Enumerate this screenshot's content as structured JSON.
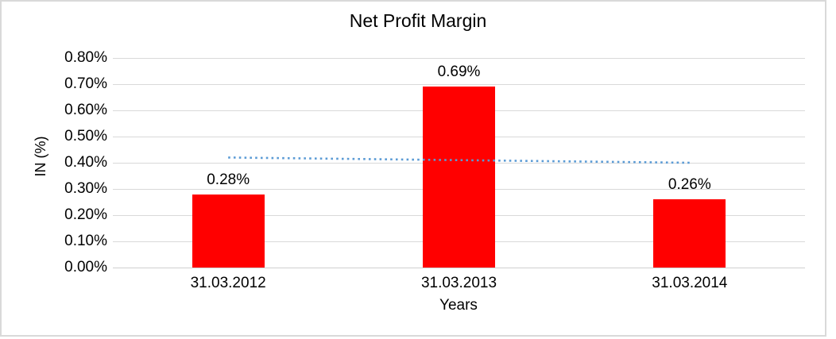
{
  "chart_data": {
    "type": "bar",
    "title": "Net Profit Margin",
    "xlabel": "Years",
    "ylabel": "IN (%)",
    "categories": [
      "31.03.2012",
      "31.03.2013",
      "31.03.2014"
    ],
    "values": [
      0.28,
      0.69,
      0.26
    ],
    "data_labels": [
      "0.28%",
      "0.69%",
      "0.26%"
    ],
    "yticks": [
      {
        "value": 0.8,
        "label": "0.80%"
      },
      {
        "value": 0.7,
        "label": "0.70%"
      },
      {
        "value": 0.6,
        "label": "0.60%"
      },
      {
        "value": 0.5,
        "label": "0.50%"
      },
      {
        "value": 0.4,
        "label": "0.40%"
      },
      {
        "value": 0.3,
        "label": "0.30%"
      },
      {
        "value": 0.2,
        "label": "0.20%"
      },
      {
        "value": 0.1,
        "label": "0.10%"
      },
      {
        "value": 0.0,
        "label": "0.00%"
      }
    ],
    "ylim": [
      0,
      0.8
    ],
    "grid": true,
    "legend": "none",
    "trendline": {
      "type": "linear",
      "style": "dotted",
      "start_value": 0.42,
      "end_value": 0.4
    },
    "colors": {
      "bar": "#FF0000",
      "gridline": "#D9D9D9",
      "axis_line": "#D0D0D0",
      "trendline": "#5B9BD5",
      "text": "#000000",
      "frame_border": "#D9D9D9"
    }
  }
}
